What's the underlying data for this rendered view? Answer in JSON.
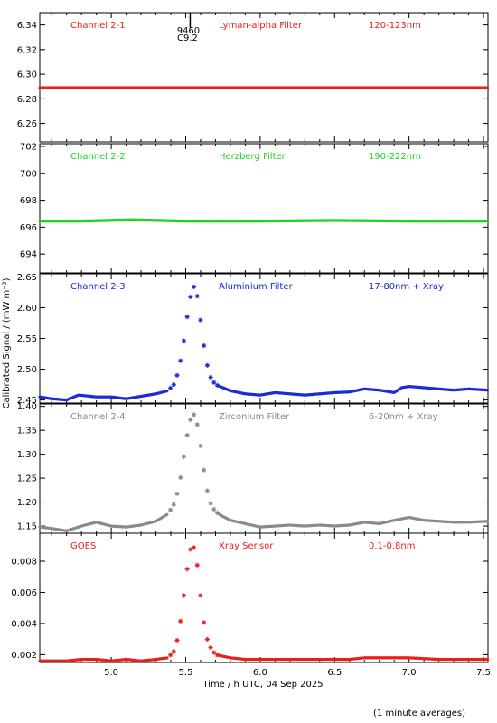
{
  "chart_data": {
    "type": "scatter",
    "xlabel": "Time / h UTC, 04 Sep 2025",
    "ylabel": "Calibrated Signal / (mW m⁻²)",
    "footnote": "(1 minute averages)",
    "xlim": [
      4.52,
      7.53
    ],
    "xticks": [
      5.0,
      5.5,
      6.0,
      6.5,
      7.0,
      7.5
    ],
    "xtick_labels": [
      "5.0",
      "5.5",
      "6.0",
      "6.5",
      "7.0",
      "7.5"
    ],
    "marker": "*",
    "event_marker": {
      "x": 5.53,
      "label_top": "9460",
      "label_bottom": "C9.2"
    },
    "panels": [
      {
        "channel": "Channel 2-1",
        "filter": "Lyman-alpha Filter",
        "band": "120-123nm",
        "color": "#e8201c",
        "ylim": [
          6.245,
          6.35
        ],
        "yticks": [
          6.26,
          6.28,
          6.3,
          6.32,
          6.34
        ],
        "ytick_labels": [
          "6.26",
          "6.28",
          "6.30",
          "6.32",
          "6.34"
        ],
        "series": {
          "x": [
            4.52,
            5.0,
            5.5,
            6.0,
            6.5,
            7.0,
            7.53
          ],
          "y": [
            6.289,
            6.289,
            6.289,
            6.289,
            6.289,
            6.289,
            6.289
          ]
        }
      },
      {
        "channel": "Channel 2-2",
        "filter": "Herzberg Filter",
        "band": "190-222nm",
        "color": "#22d222",
        "ylim": [
          692.6,
          702.2
        ],
        "yticks": [
          694,
          696,
          698,
          700,
          702
        ],
        "ytick_labels": [
          "694",
          "696",
          "698",
          "700",
          "702"
        ],
        "series": {
          "x": [
            4.52,
            4.8,
            5.14,
            5.5,
            6.0,
            6.5,
            7.0,
            7.53
          ],
          "y": [
            696.45,
            696.45,
            696.55,
            696.45,
            696.45,
            696.5,
            696.45,
            696.45
          ]
        }
      },
      {
        "channel": "Channel 2-3",
        "filter": "Aluminium Filter",
        "band": "17-80nm + Xray",
        "color": "#1c2ad8",
        "ylim": [
          2.445,
          2.655
        ],
        "yticks": [
          2.45,
          2.5,
          2.55,
          2.6,
          2.65
        ],
        "ytick_labels": [
          "2.45",
          "2.50",
          "2.55",
          "2.60",
          "2.65"
        ],
        "series": {
          "x": [
            4.52,
            4.6,
            4.7,
            4.78,
            4.9,
            5.0,
            5.1,
            5.2,
            5.3,
            5.38,
            5.42,
            5.45,
            5.47,
            5.49,
            5.51,
            5.53,
            5.55,
            5.57,
            5.59,
            5.61,
            5.63,
            5.65,
            5.67,
            5.7,
            5.75,
            5.8,
            5.9,
            6.0,
            6.1,
            6.2,
            6.3,
            6.4,
            6.5,
            6.6,
            6.7,
            6.8,
            6.9,
            6.95,
            7.0,
            7.1,
            7.2,
            7.3,
            7.4,
            7.53
          ],
          "y": [
            2.455,
            2.452,
            2.45,
            2.458,
            2.455,
            2.455,
            2.452,
            2.456,
            2.46,
            2.465,
            2.475,
            2.495,
            2.52,
            2.55,
            2.585,
            2.615,
            2.635,
            2.63,
            2.6,
            2.56,
            2.525,
            2.5,
            2.485,
            2.475,
            2.47,
            2.465,
            2.46,
            2.458,
            2.462,
            2.46,
            2.458,
            2.46,
            2.462,
            2.463,
            2.468,
            2.466,
            2.462,
            2.47,
            2.472,
            2.47,
            2.468,
            2.466,
            2.468,
            2.466
          ]
        }
      },
      {
        "channel": "Channel 2-4",
        "filter": "Zirconium Filter",
        "band": "6-20nm + Xray",
        "color": "#8a8a8a",
        "ylim": [
          1.135,
          1.405
        ],
        "yticks": [
          1.15,
          1.2,
          1.25,
          1.3,
          1.35,
          1.4
        ],
        "ytick_labels": [
          "1.15",
          "1.20",
          "1.25",
          "1.30",
          "1.35",
          "1.40"
        ],
        "series": {
          "x": [
            4.52,
            4.6,
            4.7,
            4.8,
            4.9,
            5.0,
            5.1,
            5.2,
            5.3,
            5.38,
            5.42,
            5.45,
            5.47,
            5.49,
            5.51,
            5.53,
            5.55,
            5.57,
            5.59,
            5.61,
            5.63,
            5.65,
            5.67,
            5.7,
            5.75,
            5.8,
            5.9,
            6.0,
            6.1,
            6.2,
            6.3,
            6.4,
            6.5,
            6.6,
            6.7,
            6.8,
            6.9,
            7.0,
            7.1,
            7.2,
            7.3,
            7.4,
            7.53
          ],
          "y": [
            1.148,
            1.145,
            1.14,
            1.15,
            1.158,
            1.15,
            1.148,
            1.152,
            1.16,
            1.175,
            1.195,
            1.225,
            1.26,
            1.3,
            1.34,
            1.37,
            1.385,
            1.375,
            1.34,
            1.295,
            1.25,
            1.215,
            1.195,
            1.18,
            1.17,
            1.162,
            1.155,
            1.148,
            1.15,
            1.152,
            1.15,
            1.152,
            1.15,
            1.152,
            1.158,
            1.155,
            1.162,
            1.168,
            1.162,
            1.16,
            1.158,
            1.158,
            1.16
          ]
        }
      },
      {
        "channel": "GOES",
        "filter": "Xray Sensor",
        "band": "0.1-0.8nm",
        "color": "#e8201c",
        "ylim": [
          0.0015,
          0.0098
        ],
        "yticks": [
          0.002,
          0.004,
          0.006,
          0.008
        ],
        "ytick_labels": [
          "0.002",
          "0.004",
          "0.006",
          "0.008"
        ],
        "series": {
          "x": [
            4.52,
            4.6,
            4.7,
            4.8,
            4.9,
            5.0,
            5.1,
            5.2,
            5.3,
            5.38,
            5.42,
            5.44,
            5.46,
            5.48,
            5.5,
            5.52,
            5.54,
            5.56,
            5.58,
            5.6,
            5.62,
            5.64,
            5.67,
            5.7,
            5.8,
            5.9,
            6.0,
            6.2,
            6.4,
            6.6,
            6.7,
            6.8,
            6.9,
            7.0,
            7.2,
            7.4,
            7.53
          ],
          "y": [
            0.0016,
            0.0016,
            0.0016,
            0.0017,
            0.0017,
            0.0016,
            0.0017,
            0.0016,
            0.0017,
            0.0018,
            0.0022,
            0.0028,
            0.0038,
            0.0052,
            0.0068,
            0.0082,
            0.0091,
            0.0088,
            0.0076,
            0.0058,
            0.0042,
            0.0031,
            0.0024,
            0.002,
            0.0018,
            0.0017,
            0.0017,
            0.0017,
            0.0017,
            0.0017,
            0.0018,
            0.0018,
            0.0018,
            0.0018,
            0.0017,
            0.0017,
            0.0017
          ]
        }
      }
    ]
  }
}
